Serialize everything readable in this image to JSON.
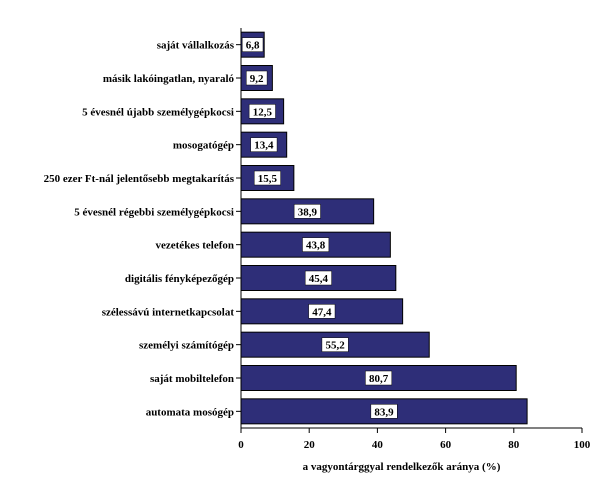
{
  "chart_data": {
    "type": "bar",
    "orientation": "horizontal",
    "categories": [
      "saját vállalkozás",
      "másik lakóingatlan, nyaraló",
      "5 évesnél újabb személygépkocsi",
      "mosogatógép",
      "250 ezer Ft-nál jelentősebb megtakarítás",
      "5 évesnél régebbi személygépkocsi",
      "vezetékes telefon",
      "digitális fényképezőgép",
      "szélessávú internetkapcsolat",
      "személyi számítógép",
      "saját mobiltelefon",
      "automata mosógép"
    ],
    "values": [
      6.8,
      9.2,
      12.5,
      13.4,
      15.5,
      38.9,
      43.8,
      45.4,
      47.4,
      55.2,
      80.7,
      83.9
    ],
    "data_labels": [
      "6,8",
      "9,2",
      "12,5",
      "13,4",
      "15,5",
      "38,9",
      "43,8",
      "45,4",
      "47,4",
      "55,2",
      "80,7",
      "83,9"
    ],
    "xlabel": "a vagyontárggyal rendelkezők aránya (%)",
    "ylabel": "",
    "title": "",
    "xlim": [
      0,
      100
    ],
    "xticks": [
      "0",
      "20",
      "40",
      "60",
      "80",
      "100"
    ],
    "grid": false,
    "colors": {
      "bar": "#2e2e78",
      "bar_edge": "#000000",
      "label_box": "#ffffff"
    }
  }
}
